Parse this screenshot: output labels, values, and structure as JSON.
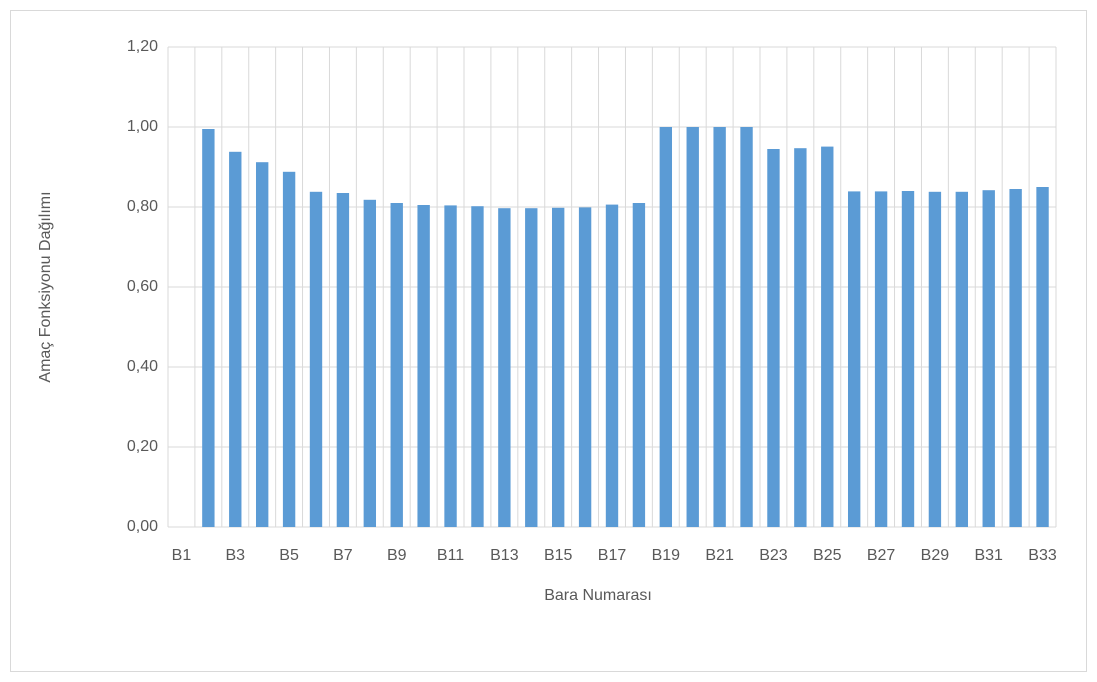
{
  "chart_data": {
    "type": "bar",
    "x_label": "Bara Numarası",
    "y_label": "Amaç Fonksiyonu Dağılımı",
    "categories": [
      "B1",
      null,
      "B3",
      null,
      "B5",
      null,
      "B7",
      null,
      "B9",
      null,
      "B11",
      null,
      "B13",
      null,
      "B15",
      null,
      "B17",
      null,
      "B19",
      null,
      "B21",
      null,
      "B23",
      null,
      "B25",
      null,
      "B27",
      null,
      "B29",
      null,
      "B31",
      null,
      "B33"
    ],
    "values": [
      0,
      0.995,
      0.938,
      0.912,
      0.888,
      0.838,
      0.835,
      0.818,
      0.81,
      0.805,
      0.804,
      0.802,
      0.797,
      0.797,
      0.798,
      0.799,
      0.806,
      0.81,
      1.0,
      1.0,
      1.0,
      1.0,
      0.945,
      0.947,
      0.951,
      0.839,
      0.839,
      0.84,
      0.838,
      0.838,
      0.842,
      0.845,
      0.85
    ],
    "color": "#5b9bd5",
    "ylim": [
      0,
      1.2
    ],
    "yticks": [
      {
        "value": 0,
        "label": "0,00"
      },
      {
        "value": 0.2,
        "label": "0,20"
      },
      {
        "value": 0.4,
        "label": "0,40"
      },
      {
        "value": 0.6,
        "label": "0,60"
      },
      {
        "value": 0.8,
        "label": "0,80"
      },
      {
        "value": 1.0,
        "label": "1,00"
      },
      {
        "value": 1.2,
        "label": "1,20"
      }
    ],
    "grid": true
  }
}
